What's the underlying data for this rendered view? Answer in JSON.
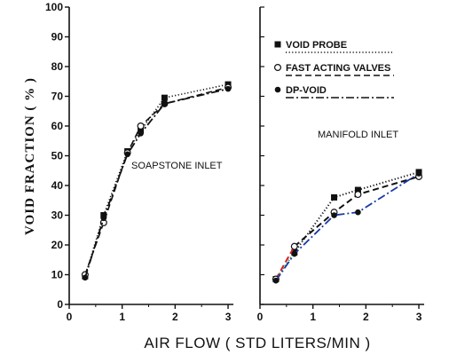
{
  "chart_data": {
    "type": "line",
    "ylabel": "VOID FRACTION ( % )",
    "xlabel": "AIR FLOW  ( STD LITERS/MIN )",
    "ylim": [
      0,
      100
    ],
    "yticks": [
      "0",
      "10",
      "20",
      "30",
      "40",
      "50",
      "60",
      "70",
      "80",
      "90",
      "100"
    ],
    "legend": [
      {
        "label": "VOID PROBE",
        "marker": "filled-square",
        "line": "dotted",
        "color": "#111111"
      },
      {
        "label": "FAST ACTING VALVES",
        "marker": "open-circle",
        "line": "dashed",
        "color": "#111111"
      },
      {
        "label": "DP-VOID",
        "marker": "filled-circle",
        "line": "dash-dot",
        "color": "#111111"
      }
    ],
    "panels": [
      {
        "label": "SOAPSTONE INLET",
        "xlim": [
          0,
          3.1
        ],
        "xticks": [
          "0",
          "1",
          "2",
          "3"
        ],
        "series": [
          {
            "name": "VOID PROBE",
            "line": "dotted",
            "marker": "filled-square",
            "color": "#111111",
            "x": [
              0.3,
              0.65,
              1.1,
              1.35,
              1.8,
              3.0
            ],
            "y": [
              9.5,
              30,
              51.5,
              58.5,
              69.5,
              74
            ]
          },
          {
            "name": "FAST ACTING VALVES",
            "line": "dashed",
            "marker": "open-circle",
            "color": "#111111",
            "x": [
              0.3,
              0.65,
              1.1,
              1.35,
              1.8,
              3.0
            ],
            "y": [
              10,
              27.5,
              51,
              60,
              67.5,
              73
            ]
          },
          {
            "name": "DP-VOID",
            "line": "dash-dot",
            "marker": "filled-circle",
            "color": "#111111",
            "x": [
              0.3,
              0.65,
              1.1,
              1.35,
              1.8,
              3.0
            ],
            "y": [
              9,
              29,
              50.5,
              57.5,
              67.5,
              72.5
            ]
          }
        ]
      },
      {
        "label": "MANIFOLD INLET",
        "xlim": [
          0,
          3.1
        ],
        "xticks": [
          "0",
          "1",
          "2",
          "3"
        ],
        "series": [
          {
            "name": "VOID PROBE",
            "line": "dotted",
            "marker": "filled-square",
            "color": "#111111",
            "x": [
              0.3,
              0.65,
              1.4,
              1.85,
              3.0
            ],
            "y": [
              8.5,
              17.5,
              36,
              38.5,
              44.5
            ],
            "first_segment_color": "#2e9e3e"
          },
          {
            "name": "FAST ACTING VALVES",
            "line": "dashed",
            "marker": "open-circle",
            "color": "#111111",
            "x": [
              0.3,
              0.65,
              1.4,
              1.85,
              3.0
            ],
            "y": [
              8.5,
              19.5,
              31,
              37,
              43
            ],
            "first_segment_color": "#d22222"
          },
          {
            "name": "DP-VOID",
            "line": "dash-dot",
            "marker": "filled-circle",
            "color": "#1a3aa8",
            "x": [
              0.3,
              0.65,
              1.4,
              1.85,
              3.0
            ],
            "y": [
              8,
              17,
              30,
              31,
              44
            ]
          }
        ]
      }
    ]
  }
}
